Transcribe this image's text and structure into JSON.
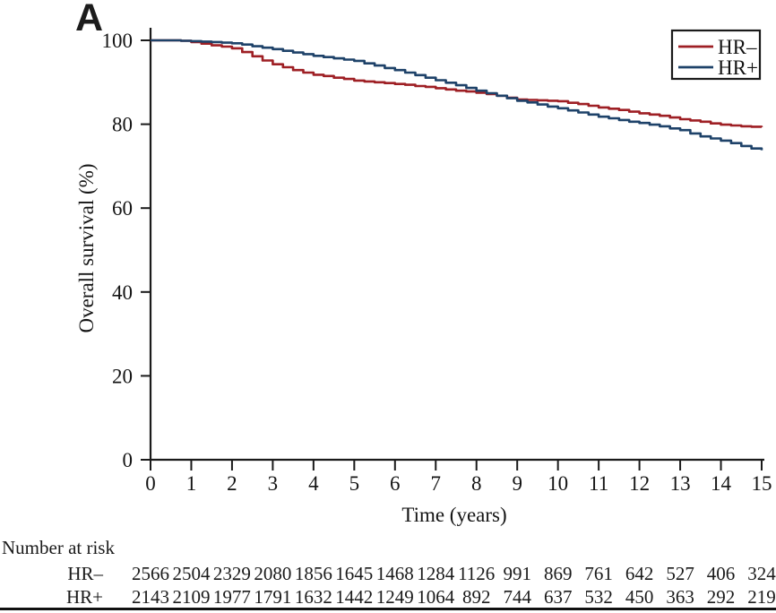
{
  "panel_label": "A",
  "colors": {
    "hr_negative": "#9E1F24",
    "hr_positive": "#1E4269",
    "axis": "#1a1a1a"
  },
  "chart_data": {
    "type": "line",
    "subtype": "kaplan-meier-step",
    "title": "",
    "xlabel": "Time (years)",
    "ylabel": "Overall survival (%)",
    "xlim": [
      0,
      15
    ],
    "ylim": [
      0,
      100
    ],
    "xticks": [
      0,
      1,
      2,
      3,
      4,
      5,
      6,
      7,
      8,
      9,
      10,
      11,
      12,
      13,
      14,
      15
    ],
    "yticks": [
      0,
      20,
      40,
      60,
      80,
      100
    ],
    "grid": false,
    "legend": {
      "position": "top-right",
      "entries": [
        {
          "name": "HR–",
          "color": "#9E1F24"
        },
        {
          "name": "HR+",
          "color": "#1E4269"
        }
      ]
    },
    "series": [
      {
        "name": "HR–",
        "color": "#9E1F24",
        "x": [
          0,
          0.25,
          0.5,
          0.75,
          1,
          1.25,
          1.5,
          1.75,
          2,
          2.25,
          2.5,
          2.75,
          3,
          3.25,
          3.5,
          3.75,
          4,
          4.25,
          4.5,
          4.75,
          5,
          5.25,
          5.5,
          5.75,
          6,
          6.25,
          6.5,
          6.75,
          7,
          7.25,
          7.5,
          7.75,
          8,
          8.25,
          8.5,
          8.75,
          9,
          9.25,
          9.5,
          9.75,
          10,
          10.25,
          10.5,
          10.75,
          11,
          11.25,
          11.5,
          11.75,
          12,
          12.25,
          12.5,
          12.75,
          13,
          13.25,
          13.5,
          13.75,
          14,
          14.25,
          14.5,
          14.75,
          15
        ],
        "y": [
          100,
          100,
          100,
          99.9,
          99.6,
          99.2,
          98.8,
          98.5,
          98.1,
          97.2,
          96.2,
          95.2,
          94.3,
          93.6,
          92.9,
          92.3,
          91.8,
          91.5,
          91.1,
          90.8,
          90.4,
          90.2,
          90.0,
          89.8,
          89.6,
          89.4,
          89.1,
          88.9,
          88.6,
          88.3,
          88.0,
          87.8,
          87.5,
          87.2,
          86.8,
          86.3,
          85.9,
          85.8,
          85.7,
          85.6,
          85.5,
          85.1,
          84.8,
          84.4,
          84.0,
          83.7,
          83.4,
          83.0,
          82.6,
          82.3,
          82.0,
          81.6,
          81.2,
          80.9,
          80.6,
          80.2,
          79.9,
          79.7,
          79.5,
          79.4,
          79.3
        ]
      },
      {
        "name": "HR+",
        "color": "#1E4269",
        "x": [
          0,
          0.25,
          0.5,
          0.75,
          1,
          1.25,
          1.5,
          1.75,
          2,
          2.25,
          2.5,
          2.75,
          3,
          3.25,
          3.5,
          3.75,
          4,
          4.25,
          4.5,
          4.75,
          5,
          5.25,
          5.5,
          5.75,
          6,
          6.25,
          6.5,
          6.75,
          7,
          7.25,
          7.5,
          7.75,
          8,
          8.25,
          8.5,
          8.75,
          9,
          9.25,
          9.5,
          9.75,
          10,
          10.25,
          10.5,
          10.75,
          11,
          11.25,
          11.5,
          11.75,
          12,
          12.25,
          12.5,
          12.75,
          13,
          13.25,
          13.5,
          13.75,
          14,
          14.25,
          14.5,
          14.75,
          15
        ],
        "y": [
          100,
          100,
          100,
          99.9,
          99.8,
          99.7,
          99.6,
          99.45,
          99.3,
          99.0,
          98.6,
          98.25,
          97.9,
          97.5,
          97.1,
          96.7,
          96.3,
          96.0,
          95.7,
          95.4,
          95.1,
          94.5,
          94.0,
          93.4,
          92.9,
          92.3,
          91.7,
          91.1,
          90.5,
          89.9,
          89.3,
          88.65,
          88.0,
          87.4,
          86.8,
          86.2,
          85.6,
          85.2,
          84.7,
          84.2,
          83.8,
          83.3,
          82.8,
          82.3,
          81.8,
          81.4,
          81.0,
          80.6,
          80.3,
          79.9,
          79.5,
          79.0,
          78.6,
          77.8,
          77.1,
          76.6,
          76.1,
          75.5,
          74.8,
          74.2,
          73.8
        ]
      }
    ]
  },
  "risk_table": {
    "title": "Number at risk",
    "timepoints": [
      0,
      1,
      2,
      3,
      4,
      5,
      6,
      7,
      8,
      9,
      10,
      11,
      12,
      13,
      14,
      15
    ],
    "rows": [
      {
        "label": "HR–",
        "values": [
          2566,
          2504,
          2329,
          2080,
          1856,
          1645,
          1468,
          1284,
          1126,
          991,
          869,
          761,
          642,
          527,
          406,
          324
        ]
      },
      {
        "label": "HR+",
        "values": [
          2143,
          2109,
          1977,
          1791,
          1632,
          1442,
          1249,
          1064,
          892,
          744,
          637,
          532,
          450,
          363,
          292,
          219
        ]
      }
    ]
  }
}
